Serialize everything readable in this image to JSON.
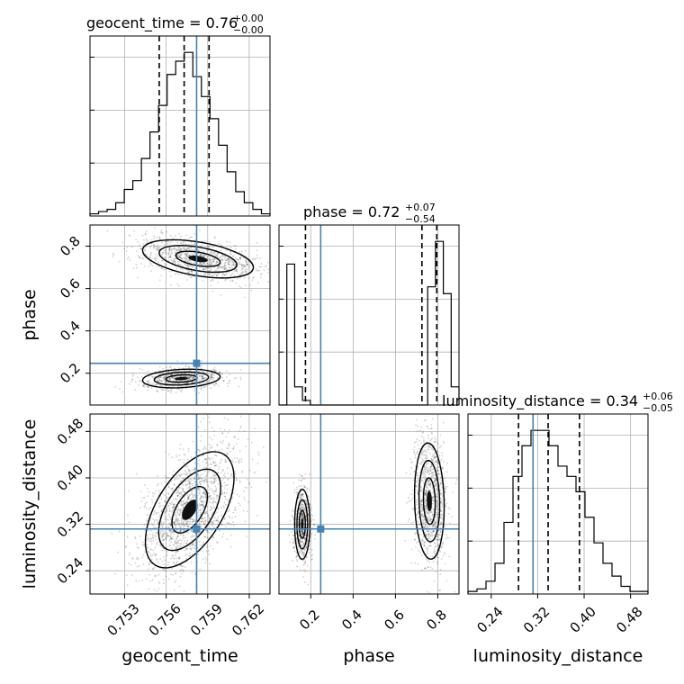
{
  "chart_data": {
    "type": "corner",
    "parameters": [
      "geocent_time",
      "phase",
      "luminosity_distance"
    ],
    "axis_labels": [
      "geocent_time",
      "phase",
      "luminosity_distance"
    ],
    "ranges": {
      "geocent_time": [
        0.7505,
        0.7635
      ],
      "phase": [
        0.05,
        0.9
      ],
      "luminosity_distance": [
        0.2,
        0.51
      ]
    },
    "ticks": {
      "geocent_time": [
        "0.753",
        "0.756",
        "0.759",
        "0.762"
      ],
      "phase": [
        "0.2",
        "0.4",
        "0.6",
        "0.8"
      ],
      "phase_y": [
        "0.2",
        "0.4",
        "0.6",
        "0.8"
      ],
      "luminosity_distance": [
        "0.24",
        "0.32",
        "0.40",
        "0.48"
      ]
    },
    "truths": {
      "geocent_time": 0.7582,
      "phase": 0.247,
      "luminosity_distance": 0.312
    },
    "titles": [
      {
        "param": "geocent_time",
        "text": "geocent_time = 0.76",
        "upper": "+0.00",
        "lower": "−0.00"
      },
      {
        "param": "phase",
        "text": "phase = 0.72",
        "upper": "+0.07",
        "lower": "−0.54"
      },
      {
        "param": "luminosity_distance",
        "text": "luminosity_distance = 0.34",
        "upper": "+0.06",
        "lower": "−0.05"
      }
    ],
    "quantiles": {
      "geocent_time": [
        0.7555,
        0.7573,
        0.7591
      ],
      "phase": [
        0.175,
        0.725,
        0.795
      ],
      "luminosity_distance": [
        0.287,
        0.338,
        0.392
      ]
    },
    "histograms": {
      "geocent_time": {
        "edges": [
          0.7505,
          0.7635
        ],
        "counts": [
          1,
          2,
          3,
          6,
          12,
          16,
          26,
          38,
          50,
          64,
          70,
          74,
          63,
          54,
          44,
          32,
          20,
          11,
          6,
          3,
          1
        ]
      },
      "phase": {
        "edges": [
          0.05,
          0.9
        ],
        "counts": [
          0,
          62,
          8,
          2,
          0,
          0,
          0,
          0,
          0,
          0,
          0,
          0,
          0,
          0,
          0,
          0,
          0,
          0,
          0,
          52,
          72,
          49,
          8
        ]
      },
      "luminosity_distance": {
        "edges": [
          0.2,
          0.51
        ],
        "counts": [
          1,
          2,
          5,
          12,
          28,
          46,
          58,
          64,
          64,
          58,
          50,
          46,
          40,
          30,
          20,
          12,
          7,
          3,
          1,
          1
        ]
      }
    },
    "joint_modes": [
      {
        "pair": [
          "geocent_time",
          "phase"
        ],
        "modes": [
          {
            "x": 0.7583,
            "y": 0.74,
            "sx": 0.002,
            "sy": 0.045,
            "rho": -0.45,
            "weight": 0.62
          },
          {
            "x": 0.7571,
            "y": 0.175,
            "sx": 0.0014,
            "sy": 0.022,
            "rho": 0.2,
            "weight": 0.38
          }
        ]
      },
      {
        "pair": [
          "geocent_time",
          "luminosity_distance"
        ],
        "modes": [
          {
            "x": 0.7577,
            "y": 0.345,
            "sx": 0.0016,
            "sy": 0.05,
            "rho": 0.55,
            "weight": 1.0
          }
        ]
      },
      {
        "pair": [
          "phase",
          "luminosity_distance"
        ],
        "modes": [
          {
            "x": 0.76,
            "y": 0.36,
            "sx": 0.035,
            "sy": 0.05,
            "rho": -0.1,
            "weight": 0.62
          },
          {
            "x": 0.16,
            "y": 0.32,
            "sx": 0.018,
            "sy": 0.03,
            "rho": 0.0,
            "weight": 0.38
          }
        ]
      }
    ],
    "grid": true,
    "truth_color": "#4682b4",
    "contour_color": "#000000"
  }
}
